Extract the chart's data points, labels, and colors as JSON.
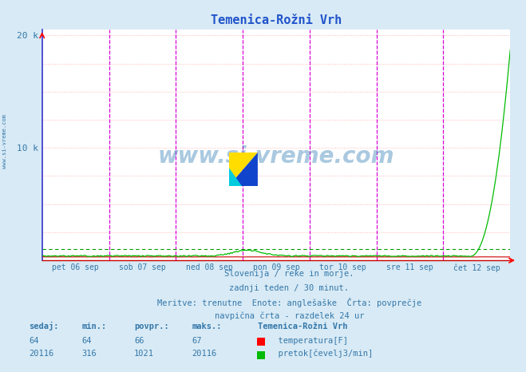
{
  "title": "Temenica-Rožni Vrh",
  "bg_color": "#d8eaf5",
  "plot_bg_color": "#ffffff",
  "grid_h_color": "#ffaaaa",
  "grid_v_color": "#aaaacc",
  "border_left_color": "#3333cc",
  "border_bottom_color": "#cc0000",
  "title_color": "#2255cc",
  "text_color": "#3377aa",
  "ylim": [
    0,
    20500
  ],
  "xlim": [
    0,
    1
  ],
  "n_points": 336,
  "day_labels": [
    "pet 06 sep",
    "sob 07 sep",
    "ned 08 sep",
    "pon 09 sep",
    "tor 10 sep",
    "sre 11 sep",
    "čet 12 sep"
  ],
  "vline_color": "#dd00dd",
  "temp_color": "#cc0000",
  "flow_color": "#00bb00",
  "flow_dashed_color": "#009900",
  "temp_value": 64,
  "temp_min": 64,
  "temp_avg": 66,
  "temp_max": 67,
  "flow_value": 20116,
  "flow_min": 316,
  "flow_avg": 1021,
  "flow_max": 20116,
  "subtitle_lines": [
    "Slovenija / reke in morje.",
    "zadnji teden / 30 minut.",
    "Meritve: trenutne  Enote: anglešaške  Črta: povprečje",
    "navpična črta - razdelek 24 ur"
  ],
  "watermark": "www.si-vreme.com",
  "side_watermark": "www.si-vreme.com"
}
